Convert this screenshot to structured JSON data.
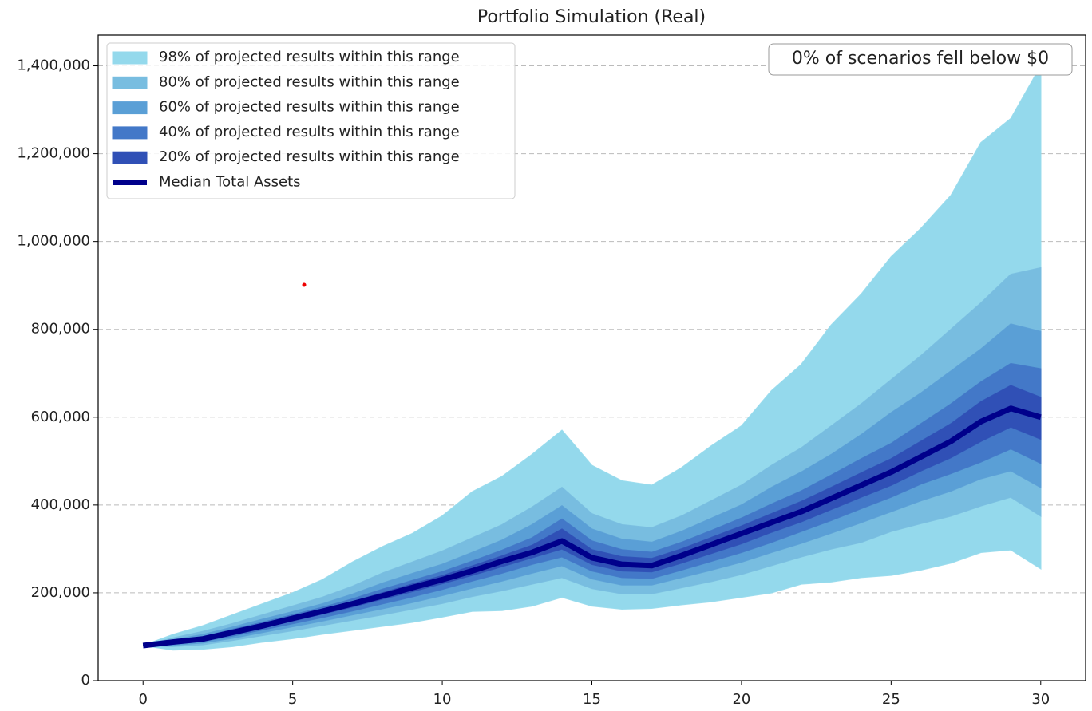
{
  "chart_data": {
    "type": "fan",
    "title": "Portfolio Simulation (Real)",
    "annotation": "0% of scenarios fell below $0",
    "legend": "upper left",
    "grid": true,
    "x": [
      0,
      1,
      2,
      3,
      4,
      5,
      6,
      7,
      8,
      9,
      10,
      11,
      12,
      13,
      14,
      15,
      16,
      17,
      18,
      19,
      20,
      21,
      22,
      23,
      24,
      25,
      26,
      27,
      28,
      29,
      30
    ],
    "xlim": [
      -1.5,
      31.5
    ],
    "xticks": [
      0,
      5,
      10,
      15,
      20,
      25,
      30
    ],
    "ylim": [
      0,
      1470000
    ],
    "yticks": [
      0,
      {
        "value": 200000,
        "label": "200,000"
      },
      {
        "value": 400000,
        "label": "400,000"
      },
      {
        "value": 600000,
        "label": "600,000"
      },
      {
        "value": 800000,
        "label": "800,000"
      },
      {
        "value": 1000000,
        "label": "1,000,000"
      },
      {
        "value": 1200000,
        "label": "1,200,000"
      },
      {
        "value": 1400000,
        "label": "1,400,000"
      }
    ],
    "bands": [
      {
        "name": "98% of projected results within this range",
        "color": "#94d9ec",
        "upper": [
          80000,
          105000,
          125000,
          150000,
          175000,
          200000,
          230000,
          270000,
          305000,
          335000,
          375000,
          430000,
          465000,
          515000,
          570000,
          490000,
          455000,
          445000,
          485000,
          535000,
          580000,
          660000,
          720000,
          810000,
          880000,
          965000,
          1030000,
          1105000,
          1225000,
          1280000,
          1400000
        ],
        "lower": [
          80000,
          70000,
          72000,
          78000,
          88000,
          96000,
          106000,
          115000,
          124000,
          133000,
          145000,
          158000,
          160000,
          170000,
          190000,
          170000,
          163000,
          165000,
          173000,
          180000,
          190000,
          200000,
          220000,
          225000,
          235000,
          240000,
          252000,
          268000,
          292000,
          298000,
          255000
        ]
      },
      {
        "name": "80% of projected results within this range",
        "color": "#78bde0",
        "upper": [
          80000,
          97000,
          112000,
          130000,
          150000,
          170000,
          190000,
          215000,
          245000,
          270000,
          295000,
          325000,
          355000,
          395000,
          440000,
          380000,
          355000,
          348000,
          375000,
          410000,
          445000,
          490000,
          530000,
          580000,
          630000,
          685000,
          740000,
          800000,
          860000,
          925000,
          940000
        ],
        "lower": [
          80000,
          78000,
          82000,
          92000,
          103000,
          114000,
          126000,
          138000,
          150000,
          163000,
          176000,
          192000,
          205000,
          220000,
          235000,
          210000,
          198000,
          198000,
          212000,
          226000,
          242000,
          262000,
          282000,
          300000,
          315000,
          340000,
          358000,
          375000,
          398000,
          418000,
          375000
        ]
      },
      {
        "name": "60% of projected results within this range",
        "color": "#5a9fd6",
        "upper": [
          80000,
          93000,
          105000,
          122000,
          140000,
          157000,
          175000,
          197000,
          222000,
          244000,
          265000,
          292000,
          320000,
          355000,
          398000,
          345000,
          322000,
          315000,
          340000,
          370000,
          400000,
          440000,
          475000,
          515000,
          560000,
          610000,
          655000,
          705000,
          755000,
          812000,
          795000
        ],
        "lower": [
          80000,
          81000,
          86000,
          97000,
          110000,
          123000,
          136000,
          150000,
          164000,
          178000,
          194000,
          211000,
          227000,
          245000,
          262000,
          232000,
          218000,
          218000,
          235000,
          252000,
          270000,
          292000,
          313000,
          336000,
          360000,
          385000,
          410000,
          432000,
          460000,
          478000,
          440000
        ]
      },
      {
        "name": "40% of projected results within this range",
        "color": "#4378c8",
        "upper": [
          80000,
          91000,
          100000,
          117000,
          133000,
          150000,
          167000,
          186000,
          208000,
          228000,
          248000,
          272000,
          297000,
          325000,
          368000,
          318000,
          298000,
          292000,
          315000,
          342000,
          370000,
          402000,
          432000,
          468000,
          505000,
          540000,
          585000,
          630000,
          680000,
          722000,
          710000
        ],
        "lower": [
          80000,
          84000,
          90000,
          102000,
          116000,
          130000,
          144000,
          159000,
          175000,
          191000,
          208000,
          227000,
          245000,
          265000,
          282000,
          250000,
          235000,
          233000,
          252000,
          272000,
          292000,
          315000,
          340000,
          365000,
          392000,
          418000,
          448000,
          472000,
          498000,
          528000,
          495000
        ]
      },
      {
        "name": "20% of projected results within this range",
        "color": "#3050b6",
        "upper": [
          80000,
          89000,
          97000,
          113000,
          129000,
          146000,
          162000,
          180000,
          200000,
          220000,
          239000,
          261000,
          284000,
          308000,
          345000,
          298000,
          282000,
          278000,
          300000,
          326000,
          352000,
          380000,
          408000,
          440000,
          473000,
          505000,
          545000,
          585000,
          635000,
          672000,
          645000
        ],
        "lower": [
          80000,
          86000,
          93000,
          106000,
          121000,
          136000,
          152000,
          168000,
          186000,
          203000,
          221000,
          240000,
          260000,
          280000,
          300000,
          265000,
          250000,
          248000,
          268000,
          290000,
          312000,
          338000,
          362000,
          390000,
          418000,
          445000,
          478000,
          508000,
          545000,
          578000,
          550000
        ]
      }
    ],
    "median": {
      "name": "Median Total Assets",
      "color": "#00008b",
      "values": [
        80000,
        88000,
        95000,
        110000,
        125000,
        142000,
        158000,
        175000,
        193000,
        212000,
        230000,
        250000,
        272000,
        292000,
        318000,
        280000,
        265000,
        262000,
        285000,
        310000,
        335000,
        360000,
        385000,
        415000,
        445000,
        475000,
        510000,
        545000,
        590000,
        620000,
        600000
      ]
    }
  }
}
